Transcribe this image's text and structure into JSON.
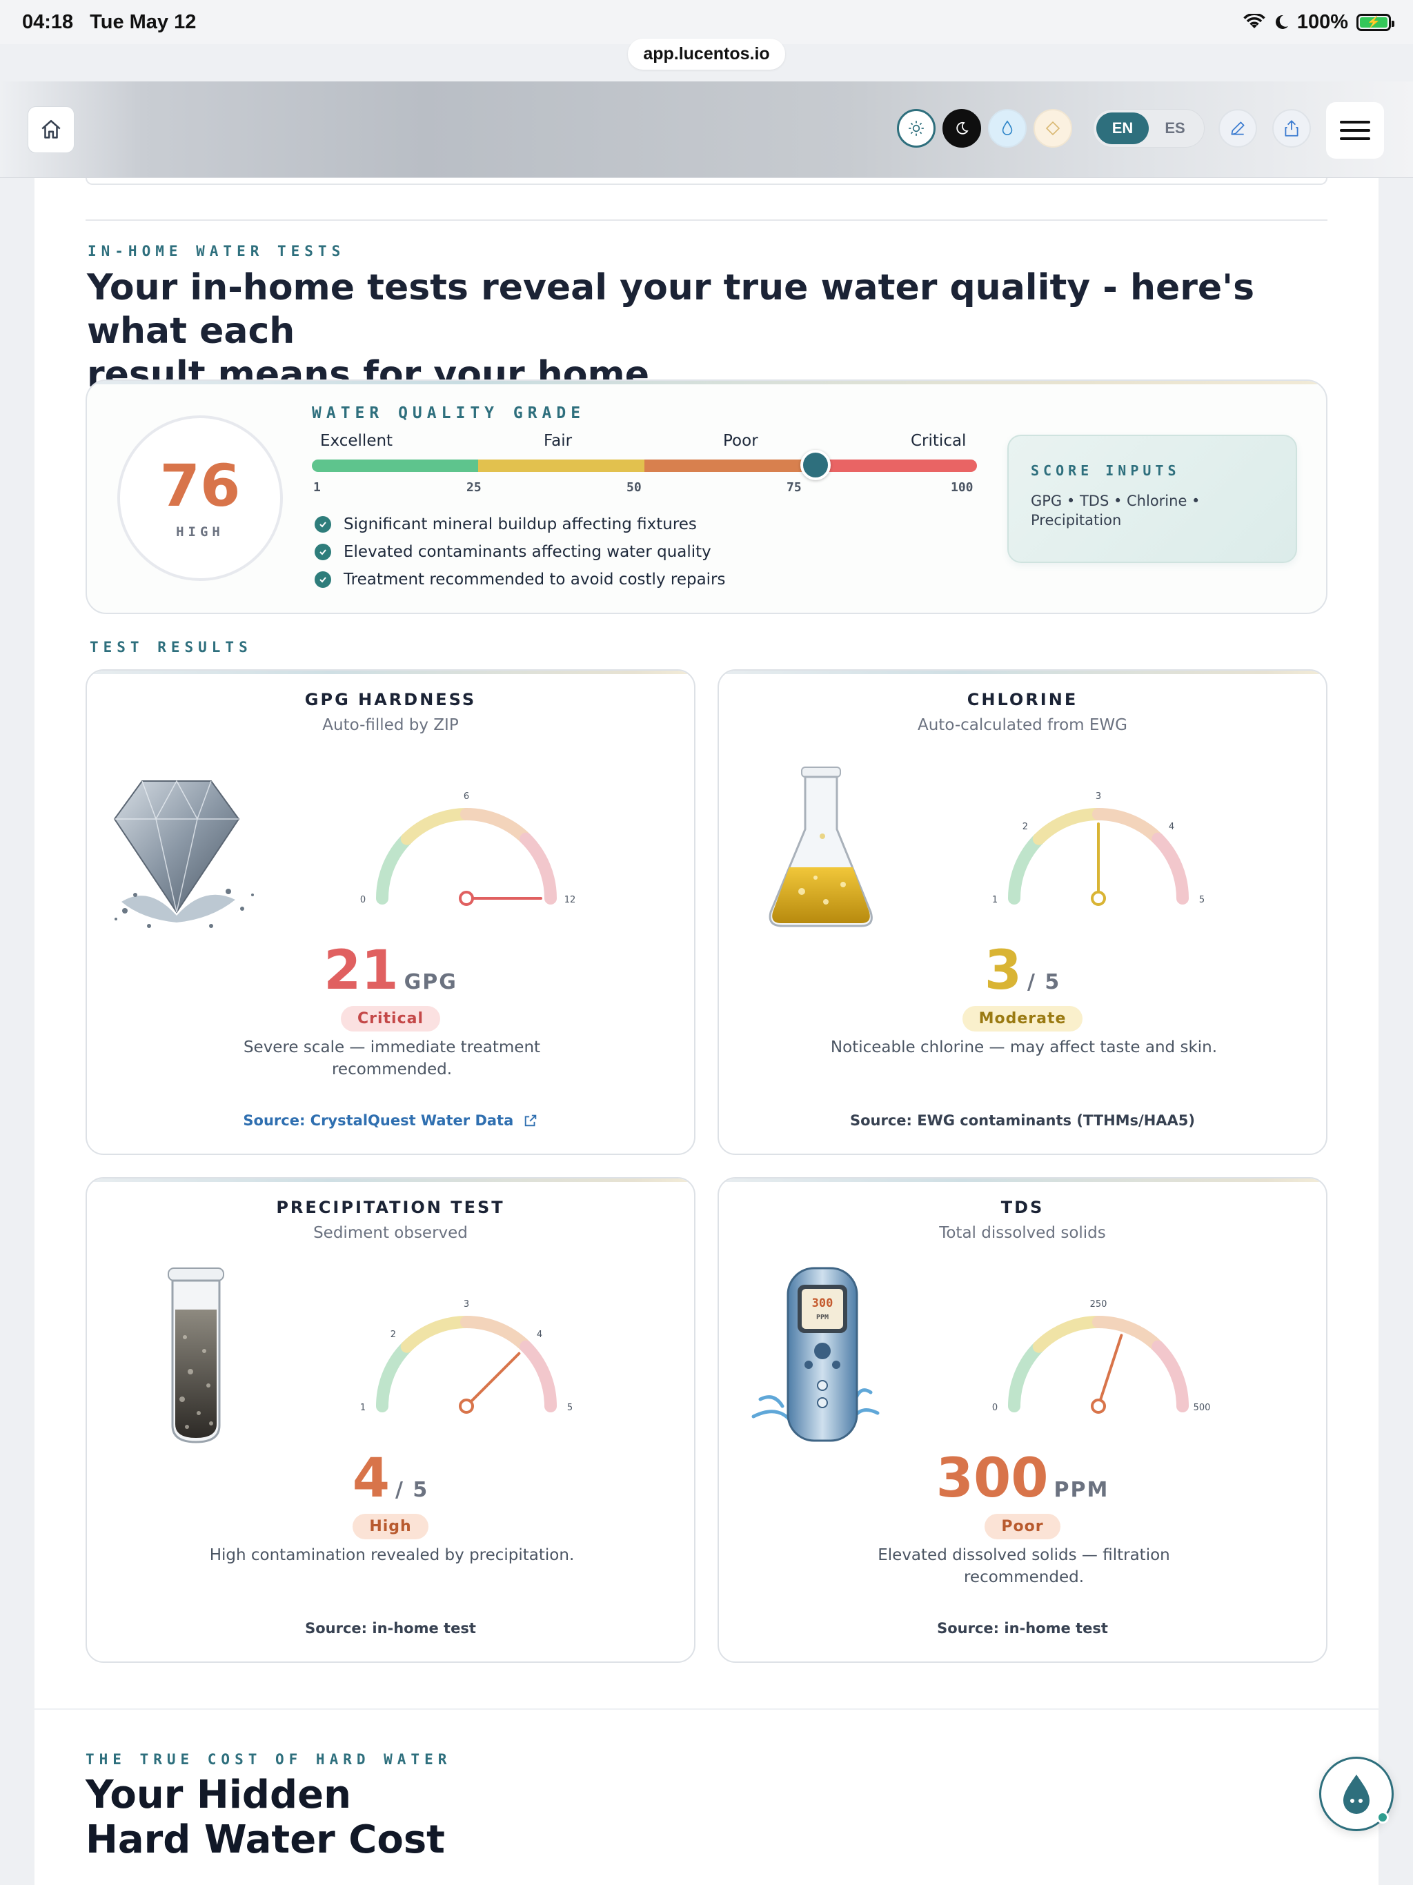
{
  "status_bar": {
    "time": "04:18",
    "date": "Tue May 12",
    "battery": "100%"
  },
  "browser": {
    "url": "app.lucentos.io"
  },
  "nav": {
    "lang_en": "EN",
    "lang_es": "ES"
  },
  "water_tests": {
    "eyebrow": "IN-HOME WATER TESTS",
    "heading_line1": "Your in-home tests reveal your true water quality - here's what each",
    "heading_line2": "result means for your home."
  },
  "grade": {
    "score": "76",
    "score_label": "HIGH",
    "title": "WATER QUALITY GRADE",
    "labels": [
      "Excellent",
      "Fair",
      "Poor",
      "Critical"
    ],
    "ticks": [
      "1",
      "25",
      "50",
      "75",
      "100"
    ],
    "value": 76,
    "max": 100,
    "bullets": [
      "Significant mineral buildup affecting fixtures",
      "Elevated contaminants affecting water quality",
      "Treatment recommended to avoid costly repairs"
    ],
    "inputs_title": "SCORE INPUTS",
    "inputs_line1": "GPG • TDS • Chlorine •",
    "inputs_line2": "Precipitation",
    "colors": {
      "excellent": "#5ec48d",
      "fair": "#e2c14e",
      "poor": "#d8804e",
      "critical": "#e96464"
    }
  },
  "results": {
    "eyebrow": "TEST RESULTS",
    "cards": [
      {
        "title": "GPG HARDNESS",
        "subtitle": "Auto-filled by ZIP",
        "value": "21",
        "unit": "GPG",
        "badge": "Critical",
        "description_line1": "Severe scale — immediate treatment",
        "description_line2": "recommended.",
        "source": "Source: CrystalQuest Water Data",
        "gauge": {
          "min_label": "0",
          "mid_label": "6",
          "max_label": "12",
          "min": 0,
          "max": 12,
          "reading": 12
        },
        "accent": "#e06060",
        "badge_bg": "#fbe1e1",
        "badge_fg": "#c44848",
        "illustration": "diamond-illustration"
      },
      {
        "title": "CHLORINE",
        "subtitle": "Auto-calculated from EWG",
        "value": "3",
        "unit": "/ 5",
        "badge": "Moderate",
        "description_line1": "Noticeable chlorine — may affect taste and skin.",
        "description_line2": "",
        "source": "Source: EWG contaminants (TTHMs/HAA5)",
        "gauge": {
          "labels": [
            "1",
            "2",
            "3",
            "4",
            "5"
          ],
          "min": 1,
          "max": 5,
          "reading": 3
        },
        "accent": "#d9b434",
        "badge_bg": "#faf0cc",
        "badge_fg": "#9a7a12",
        "illustration": "flask-illustration"
      },
      {
        "title": "PRECIPITATION TEST",
        "subtitle": "Sediment observed",
        "value": "4",
        "unit": "/ 5",
        "badge": "High",
        "description_line1": "High contamination revealed by precipitation.",
        "description_line2": "",
        "source": "Source: in-home test",
        "gauge": {
          "labels": [
            "1",
            "2",
            "3",
            "4",
            "5"
          ],
          "min": 1,
          "max": 5,
          "reading": 4
        },
        "accent": "#d8744a",
        "badge_bg": "#fbe3d6",
        "badge_fg": "#b85a2e",
        "illustration": "test-tube-illustration"
      },
      {
        "title": "TDS",
        "subtitle": "Total dissolved solids",
        "value": "300",
        "unit": "PPM",
        "badge": "Poor",
        "description_line1": "Elevated dissolved solids — filtration",
        "description_line2": "recommended.",
        "source": "Source: in-home test",
        "gauge": {
          "min_label": "0",
          "mid_label": "250",
          "max_label": "500",
          "min": 0,
          "max": 500,
          "reading": 300
        },
        "meter_reading": "300",
        "meter_unit": "PPM",
        "accent": "#d8744a",
        "badge_bg": "#fbe3d6",
        "badge_fg": "#b85a2e",
        "illustration": "tds-meter-illustration"
      }
    ]
  },
  "cost": {
    "eyebrow": "THE TRUE COST OF HARD WATER",
    "title_line1": "Your Hidden",
    "title_line2": "Hard Water Cost"
  }
}
